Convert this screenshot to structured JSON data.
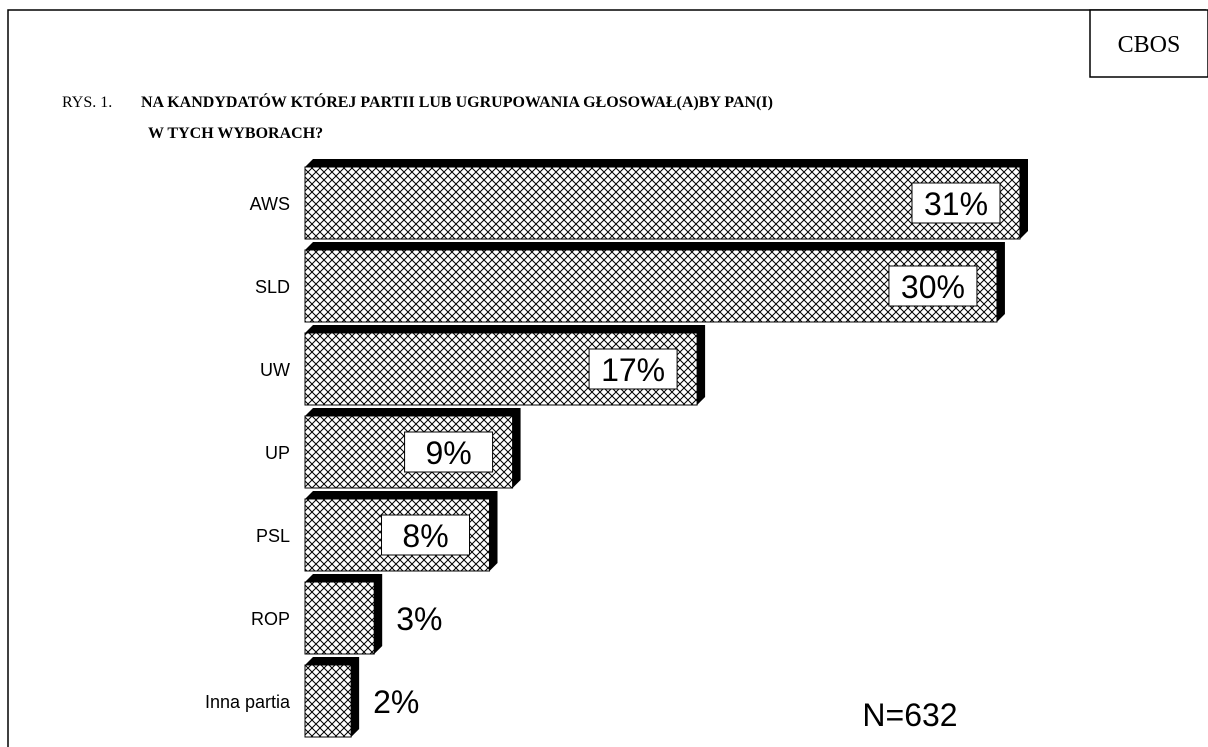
{
  "chart_data": {
    "type": "bar",
    "orientation": "horizontal",
    "badge": "CBOS",
    "figure_label": "RYS. 1.",
    "title": [
      "NA KANDYDATÓW KTÓREJ PARTII LUB UGRUPOWANIA GŁOSOWAŁ(A)BY PAN(I)",
      "W  TYCH WYBORACH?"
    ],
    "categories": [
      "AWS",
      "SLD",
      "UW",
      "UP",
      "PSL",
      "ROP",
      "Inna partia"
    ],
    "values": [
      31,
      30,
      17,
      9,
      8,
      3,
      2
    ],
    "value_labels": [
      "31%",
      "30%",
      "17%",
      "9%",
      "8%",
      "3%",
      "2%"
    ],
    "color": "#000000",
    "note": "N=632"
  }
}
